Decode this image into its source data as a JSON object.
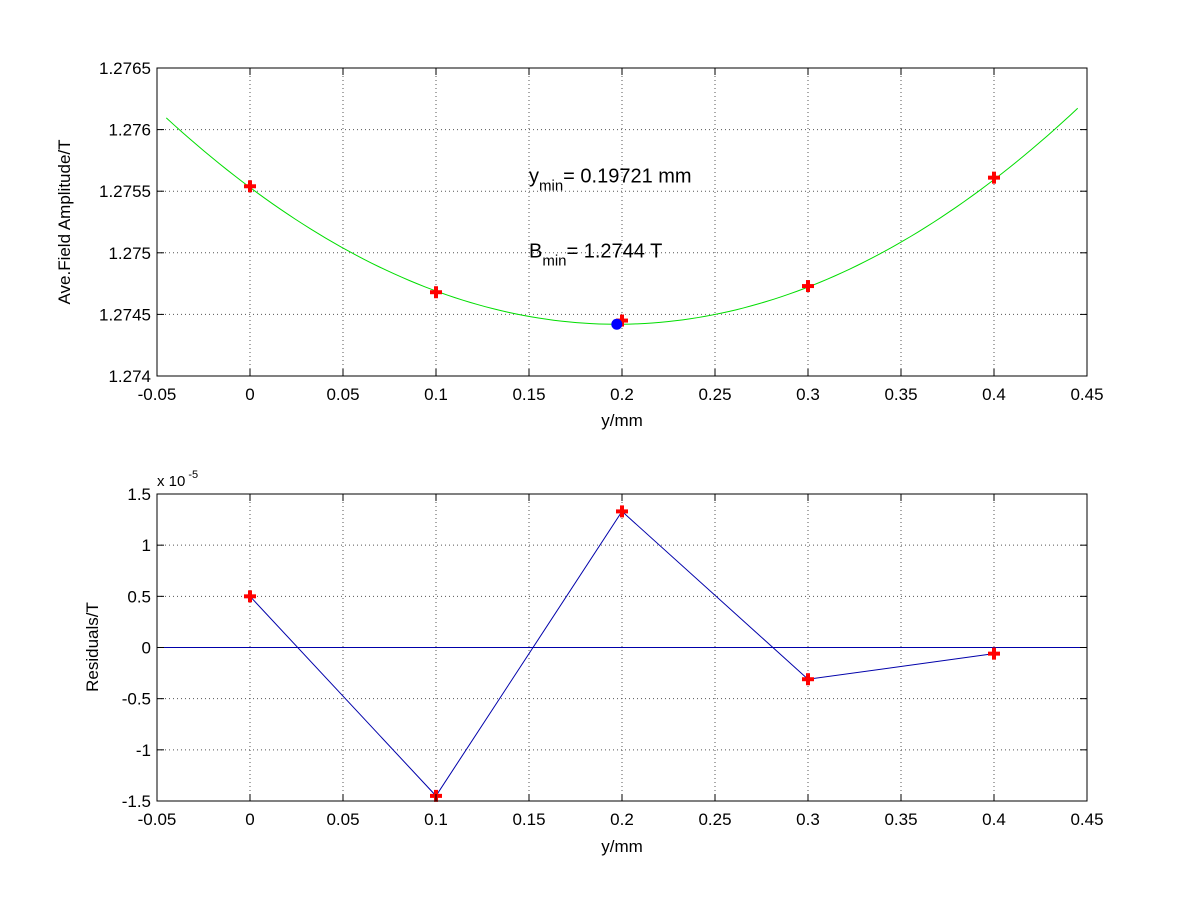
{
  "chart_data": [
    {
      "type": "scatter",
      "xlabel": "y/mm",
      "ylabel": "Ave.Field Amplitude/T",
      "xlim": [
        -0.05,
        0.45
      ],
      "ylim": [
        1.274,
        1.2765
      ],
      "xticks": [
        -0.05,
        0,
        0.05,
        0.1,
        0.15,
        0.2,
        0.25,
        0.3,
        0.35,
        0.4,
        0.45
      ],
      "xtick_labels": [
        "-0.05",
        "0",
        "0.05",
        "0.1",
        "0.15",
        "0.2",
        "0.25",
        "0.3",
        "0.35",
        "0.4",
        "0.45"
      ],
      "yticks": [
        1.274,
        1.2745,
        1.275,
        1.2755,
        1.276,
        1.2765
      ],
      "ytick_labels": [
        "1.274",
        "1.2745",
        "1.275",
        "1.2755",
        "1.276",
        "1.2765"
      ],
      "grid": true,
      "series": [
        {
          "kind": "markers",
          "marker": "plus",
          "color": "#ff0000",
          "x": [
            0,
            0.1,
            0.2,
            0.3,
            0.4
          ],
          "y": [
            1.27554,
            1.27468,
            1.27445,
            1.27473,
            1.27561
          ]
        },
        {
          "kind": "curve",
          "color": "#00dd00",
          "fit": "quadratic",
          "vertex_x": 0.19721,
          "vertex_y": 1.27442,
          "curvature": 0.02855,
          "x_range": [
            -0.045,
            0.445
          ]
        },
        {
          "kind": "markers",
          "marker": "dot",
          "color": "#0000ff",
          "x": [
            0.19721
          ],
          "y": [
            1.27442
          ]
        }
      ],
      "annotations": [
        {
          "main": "y",
          "sub": "min",
          "text": "= 0.19721 mm",
          "x": 0.15,
          "y": 1.27557
        },
        {
          "main": "B",
          "sub": "min",
          "text": "= 1.2744 T",
          "x": 0.15,
          "y": 1.27496
        }
      ]
    },
    {
      "type": "line",
      "xlabel": "y/mm",
      "ylabel": "Residuals/T",
      "xlim": [
        -0.05,
        0.45
      ],
      "ylim": [
        -1.5,
        1.5
      ],
      "xticks": [
        -0.05,
        0,
        0.05,
        0.1,
        0.15,
        0.2,
        0.25,
        0.3,
        0.35,
        0.4,
        0.45
      ],
      "xtick_labels": [
        "-0.05",
        "0",
        "0.05",
        "0.1",
        "0.15",
        "0.2",
        "0.25",
        "0.3",
        "0.35",
        "0.4",
        "0.45"
      ],
      "yticks": [
        -1.5,
        -1,
        -0.5,
        0,
        0.5,
        1,
        1.5
      ],
      "ytick_labels": [
        "-1.5",
        "-1",
        "-0.5",
        "0",
        "0.5",
        "1",
        "1.5"
      ],
      "y_multiplier": {
        "base": "x 10",
        "exponent": "-5"
      },
      "grid": true,
      "zero_line": {
        "y": 0,
        "color": "#0000aa"
      },
      "series": [
        {
          "kind": "line-markers",
          "marker": "plus",
          "line_color": "#0000aa",
          "marker_color": "#ff0000",
          "x": [
            0,
            0.1,
            0.2,
            0.3,
            0.4
          ],
          "y": [
            0.5,
            -1.45,
            1.33,
            -0.31,
            -0.06
          ]
        }
      ]
    }
  ]
}
